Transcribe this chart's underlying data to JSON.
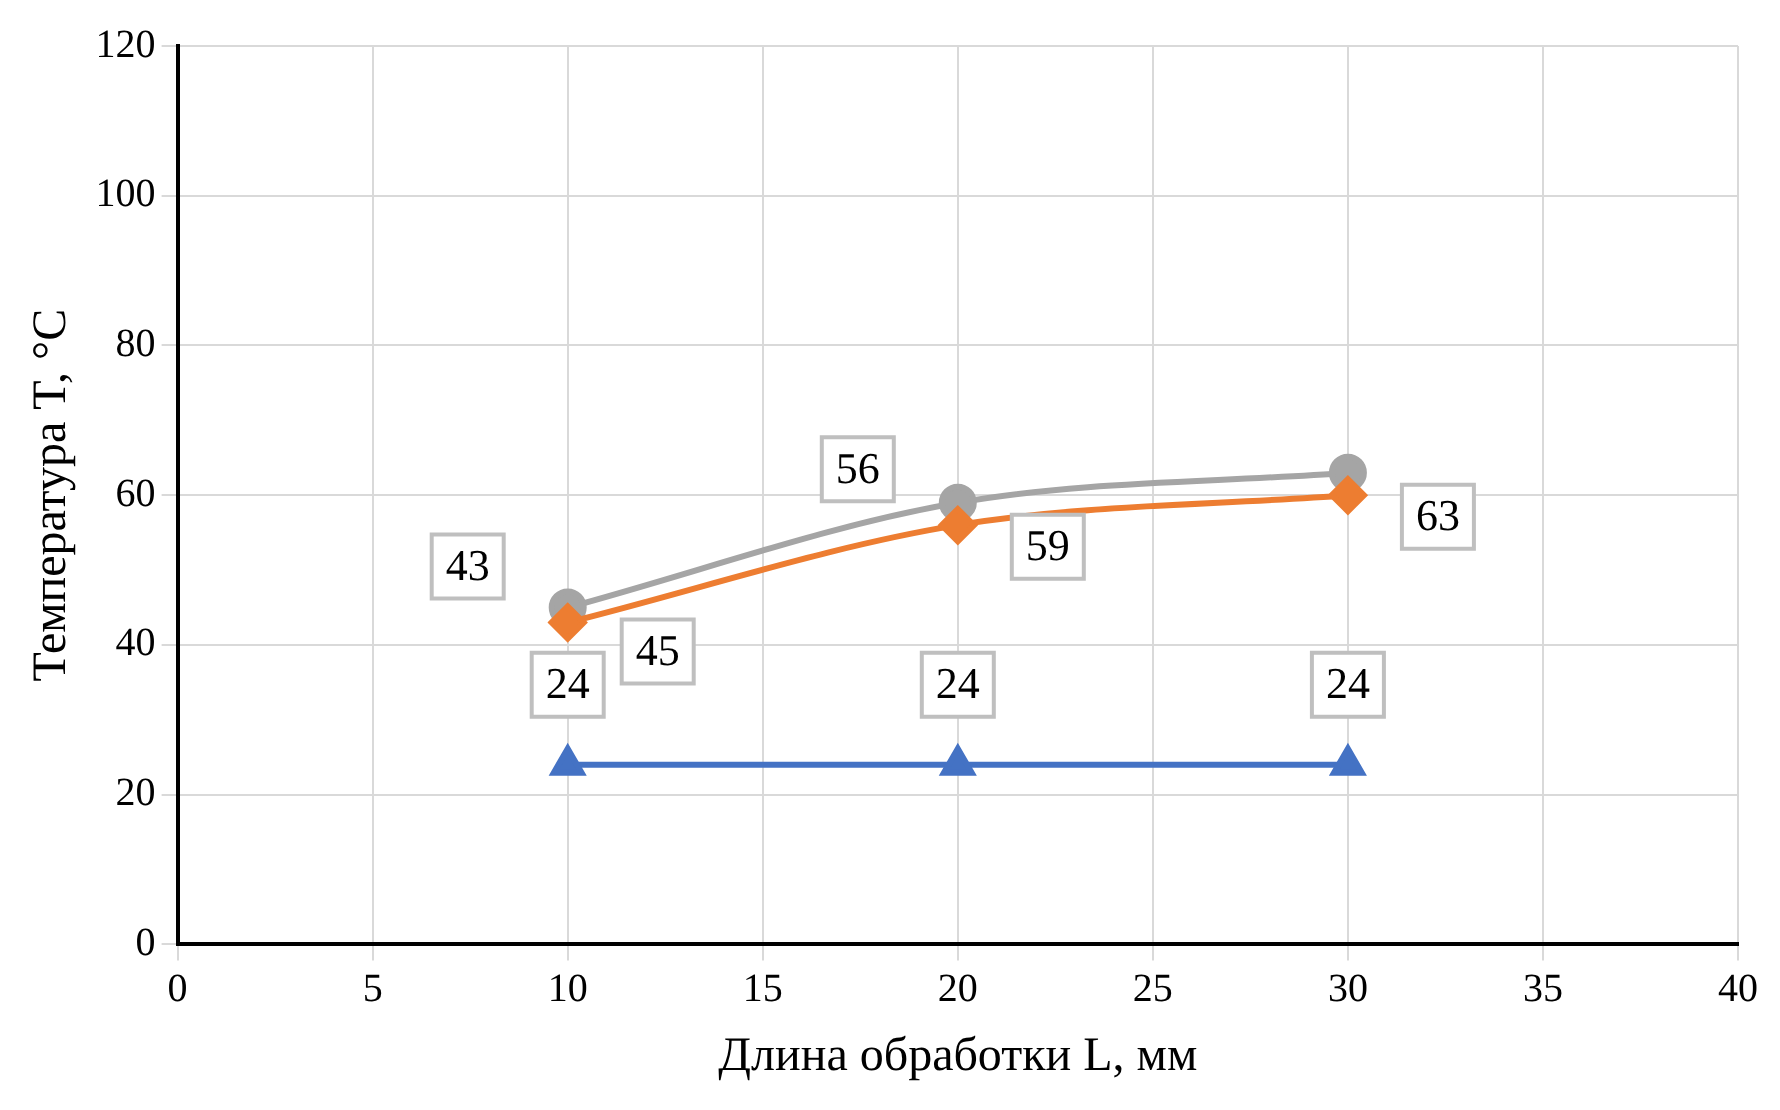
{
  "chart_data": {
    "type": "line",
    "xlabel": "Длина обработки L, мм",
    "ylabel": "Температура T, °C",
    "x": [
      10,
      20,
      30
    ],
    "xlim": [
      0,
      40
    ],
    "xticks": [
      0,
      5,
      10,
      15,
      20,
      25,
      30,
      35,
      40
    ],
    "ylim": [
      0,
      120
    ],
    "yticks": [
      0,
      20,
      40,
      60,
      80,
      100,
      120
    ],
    "grid": true,
    "legend": false,
    "series": [
      {
        "color": "#4472c4",
        "marker": "triangle",
        "values": [
          24,
          24,
          24
        ],
        "value_labels": [
          "24",
          "24",
          "24"
        ]
      },
      {
        "color": "#ed7d31",
        "marker": "diamond",
        "values": [
          43,
          56,
          60
        ],
        "value_labels": [
          "43",
          "56",
          null
        ]
      },
      {
        "color": "#a5a5a5",
        "marker": "circle",
        "values": [
          45,
          59,
          63
        ],
        "value_labels": [
          "45",
          "59",
          "63"
        ]
      }
    ]
  }
}
